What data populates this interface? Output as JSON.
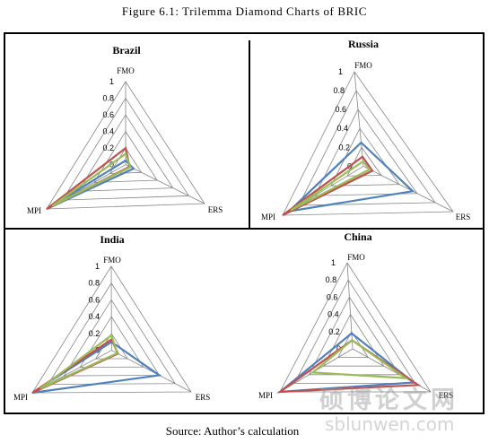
{
  "figure_title": "Figure 6.1: Trilemma Diamond Charts of BRIC",
  "source_note": "Source: Author’s calculation",
  "watermark": {
    "chinese": "硕博论文网",
    "url": "sblunwen.com"
  },
  "colors": {
    "blue": "#4f81bd",
    "red": "#c0504d",
    "green": "#9bbb59",
    "grid": "#868686"
  },
  "chart_data": [
    {
      "type": "radar",
      "title": "Brazil",
      "axes": [
        "FMO",
        "ERS",
        "MPI"
      ],
      "ticks": [
        "0",
        "0.2",
        "0.4",
        "0.6",
        "0.8",
        "1"
      ],
      "range": [
        0,
        1
      ],
      "series": [
        {
          "color": "blue",
          "values": [
            0.05,
            0.1,
            1.0
          ]
        },
        {
          "color": "red",
          "values": [
            0.2,
            0.05,
            1.0
          ]
        },
        {
          "color": "green",
          "values": [
            0.13,
            0.06,
            0.93
          ]
        }
      ]
    },
    {
      "type": "radar",
      "title": "Russia",
      "axes": [
        "FMO",
        "ERS",
        "MPI"
      ],
      "ticks": [
        "0",
        "0.2",
        "0.4",
        "0.6",
        "0.8",
        "1"
      ],
      "range": [
        0,
        1
      ],
      "series": [
        {
          "color": "blue",
          "values": [
            0.25,
            0.55,
            0.92
          ]
        },
        {
          "color": "red",
          "values": [
            0.1,
            0.1,
            1.0
          ]
        },
        {
          "color": "green",
          "values": [
            0.05,
            0.07,
            0.9
          ]
        }
      ]
    },
    {
      "type": "radar",
      "title": "India",
      "axes": [
        "FMO",
        "ERS",
        "MPI"
      ],
      "ticks": [
        "0",
        "0.2",
        "0.4",
        "0.6",
        "0.8",
        "1"
      ],
      "range": [
        0,
        1
      ],
      "series": [
        {
          "color": "blue",
          "values": [
            0.1,
            0.6,
            1.0
          ]
        },
        {
          "color": "red",
          "values": [
            0.13,
            0.08,
            1.0
          ]
        },
        {
          "color": "green",
          "values": [
            0.18,
            0.07,
            0.9
          ]
        }
      ]
    },
    {
      "type": "radar",
      "title": "China",
      "axes": [
        "FMO",
        "ERS",
        "MPI"
      ],
      "ticks": [
        "0",
        "0.2",
        "0.4",
        "0.6",
        "0.8",
        "1"
      ],
      "range": [
        0,
        1
      ],
      "series": [
        {
          "color": "blue",
          "values": [
            0.18,
            0.78,
            1.0
          ]
        },
        {
          "color": "red",
          "values": [
            0.1,
            0.84,
            1.0
          ]
        },
        {
          "color": "green",
          "values": [
            0.1,
            0.68,
            0.55
          ]
        }
      ]
    }
  ]
}
